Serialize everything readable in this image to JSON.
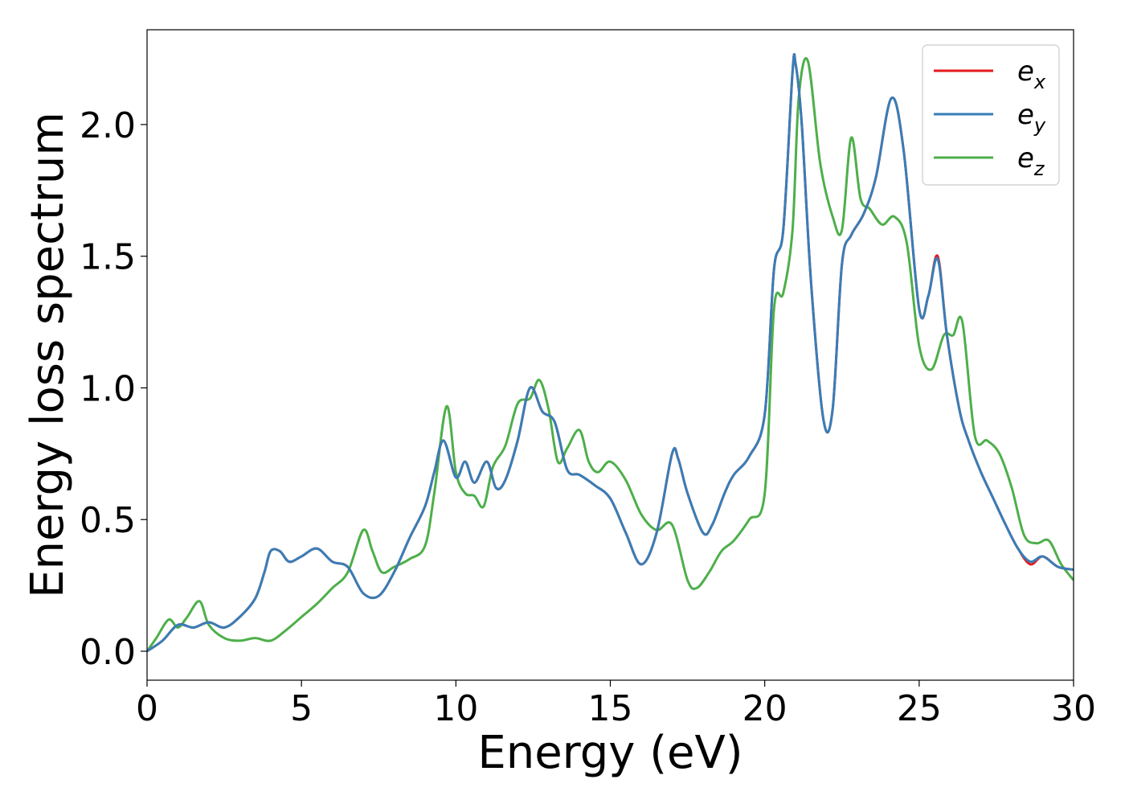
{
  "chart_data": {
    "type": "line",
    "title": "",
    "xlabel": "Energy (eV)",
    "ylabel": "Energy loss spectrum",
    "xlim": [
      0,
      30
    ],
    "ylim": [
      -0.11,
      2.36
    ],
    "xticks": [
      0,
      5,
      10,
      15,
      20,
      25,
      30
    ],
    "xtick_labels": [
      "0",
      "5",
      "10",
      "15",
      "20",
      "25",
      "30"
    ],
    "yticks": [
      0.0,
      0.5,
      1.0,
      1.5,
      2.0
    ],
    "ytick_labels": [
      "0.0",
      "0.5",
      "1.0",
      "1.5",
      "2.0"
    ],
    "grid": false,
    "legend": {
      "position": "top-right",
      "entries": [
        {
          "base": "e",
          "sub": "x",
          "color": "#e41a1c"
        },
        {
          "base": "e",
          "sub": "y",
          "color": "#377eb8"
        },
        {
          "base": "e",
          "sub": "z",
          "color": "#4daf4a"
        }
      ]
    },
    "series": [
      {
        "name": "ex",
        "color": "#e41a1c",
        "x": [
          0,
          0.5,
          1,
          1.5,
          2,
          2.5,
          3,
          3.5,
          3.8,
          4,
          4.3,
          4.6,
          5,
          5.5,
          6,
          6.5,
          7,
          7.5,
          8,
          8.5,
          9,
          9.3,
          9.6,
          10,
          10.3,
          10.6,
          11,
          11.3,
          11.6,
          12,
          12.4,
          12.8,
          13.2,
          13.6,
          14,
          14.5,
          15,
          15.5,
          16,
          16.5,
          17,
          17.2,
          17.5,
          18,
          18.3,
          18.7,
          19,
          19.5,
          20,
          20.3,
          20.6,
          20.9,
          21.0,
          21.2,
          21.5,
          21.9,
          22.2,
          22.5,
          22.8,
          23.2,
          23.6,
          24.1,
          24.5,
          25.0,
          25.3,
          25.6,
          25.9,
          26.3,
          26.6,
          27,
          27.4,
          27.8,
          28.2,
          28.6,
          29.0,
          29.5,
          30
        ],
        "y": [
          0,
          0.04,
          0.1,
          0.09,
          0.11,
          0.09,
          0.13,
          0.2,
          0.3,
          0.38,
          0.38,
          0.34,
          0.36,
          0.39,
          0.34,
          0.32,
          0.22,
          0.21,
          0.3,
          0.43,
          0.55,
          0.68,
          0.8,
          0.66,
          0.72,
          0.64,
          0.72,
          0.62,
          0.65,
          0.8,
          1.0,
          0.91,
          0.87,
          0.69,
          0.67,
          0.63,
          0.58,
          0.45,
          0.33,
          0.45,
          0.75,
          0.73,
          0.6,
          0.45,
          0.48,
          0.6,
          0.67,
          0.74,
          0.9,
          1.45,
          1.6,
          2.2,
          2.23,
          2.0,
          1.4,
          0.88,
          0.92,
          1.47,
          1.58,
          1.66,
          1.8,
          2.1,
          1.9,
          1.3,
          1.35,
          1.5,
          1.2,
          0.92,
          0.8,
          0.68,
          0.58,
          0.48,
          0.39,
          0.33,
          0.36,
          0.32,
          0.31
        ]
      },
      {
        "name": "ey",
        "color": "#377eb8",
        "x": [
          0,
          0.5,
          1,
          1.5,
          2,
          2.5,
          3,
          3.5,
          3.8,
          4,
          4.3,
          4.6,
          5,
          5.5,
          6,
          6.5,
          7,
          7.5,
          8,
          8.5,
          9,
          9.3,
          9.6,
          10,
          10.3,
          10.6,
          11,
          11.3,
          11.6,
          12,
          12.4,
          12.8,
          13.2,
          13.6,
          14,
          14.5,
          15,
          15.5,
          16,
          16.5,
          17,
          17.2,
          17.5,
          18,
          18.3,
          18.7,
          19,
          19.5,
          20,
          20.3,
          20.6,
          20.9,
          21.0,
          21.2,
          21.5,
          21.9,
          22.2,
          22.5,
          22.8,
          23.2,
          23.6,
          24.1,
          24.5,
          25.0,
          25.3,
          25.6,
          25.9,
          26.3,
          26.6,
          27,
          27.4,
          27.8,
          28.2,
          28.6,
          29.0,
          29.5,
          30
        ],
        "y": [
          0,
          0.04,
          0.1,
          0.09,
          0.11,
          0.09,
          0.13,
          0.2,
          0.3,
          0.38,
          0.38,
          0.34,
          0.36,
          0.39,
          0.34,
          0.32,
          0.22,
          0.21,
          0.3,
          0.43,
          0.55,
          0.68,
          0.8,
          0.66,
          0.72,
          0.64,
          0.72,
          0.62,
          0.65,
          0.8,
          1.0,
          0.91,
          0.87,
          0.69,
          0.67,
          0.63,
          0.58,
          0.45,
          0.33,
          0.45,
          0.75,
          0.73,
          0.6,
          0.45,
          0.48,
          0.6,
          0.67,
          0.74,
          0.9,
          1.45,
          1.6,
          2.2,
          2.23,
          2.0,
          1.4,
          0.88,
          0.92,
          1.47,
          1.58,
          1.66,
          1.8,
          2.1,
          1.9,
          1.3,
          1.35,
          1.49,
          1.2,
          0.92,
          0.8,
          0.68,
          0.58,
          0.48,
          0.39,
          0.34,
          0.36,
          0.32,
          0.31
        ]
      },
      {
        "name": "ez",
        "color": "#4daf4a",
        "x": [
          0,
          0.3,
          0.7,
          1.0,
          1.3,
          1.7,
          2.0,
          2.5,
          3.0,
          3.5,
          4.0,
          4.5,
          5.0,
          5.5,
          6.0,
          6.5,
          7.0,
          7.3,
          7.6,
          8.0,
          8.5,
          9.0,
          9.3,
          9.7,
          10.0,
          10.3,
          10.6,
          10.9,
          11.2,
          11.6,
          12.0,
          12.4,
          12.7,
          13.0,
          13.3,
          13.6,
          14.0,
          14.3,
          14.6,
          15.0,
          15.5,
          16.0,
          16.5,
          17.0,
          17.5,
          17.8,
          18.2,
          18.6,
          19.0,
          19.5,
          20.0,
          20.3,
          20.6,
          20.9,
          21.1,
          21.4,
          21.8,
          22.2,
          22.5,
          22.8,
          23.1,
          23.4,
          23.8,
          24.2,
          24.6,
          25.0,
          25.4,
          25.8,
          26.1,
          26.4,
          26.8,
          27.2,
          27.6,
          28.0,
          28.4,
          28.8,
          29.2,
          29.6,
          30.0
        ],
        "y": [
          0,
          0.05,
          0.12,
          0.09,
          0.13,
          0.19,
          0.1,
          0.05,
          0.04,
          0.05,
          0.04,
          0.08,
          0.13,
          0.18,
          0.24,
          0.3,
          0.46,
          0.38,
          0.3,
          0.32,
          0.35,
          0.4,
          0.6,
          0.93,
          0.68,
          0.6,
          0.59,
          0.55,
          0.7,
          0.78,
          0.94,
          0.96,
          1.03,
          0.92,
          0.72,
          0.77,
          0.84,
          0.72,
          0.68,
          0.72,
          0.65,
          0.52,
          0.46,
          0.48,
          0.27,
          0.24,
          0.3,
          0.38,
          0.42,
          0.5,
          0.6,
          1.3,
          1.36,
          1.6,
          2.1,
          2.24,
          1.85,
          1.65,
          1.6,
          1.95,
          1.72,
          1.68,
          1.62,
          1.65,
          1.55,
          1.16,
          1.07,
          1.2,
          1.2,
          1.25,
          0.82,
          0.8,
          0.75,
          0.62,
          0.44,
          0.41,
          0.42,
          0.33,
          0.27
        ]
      }
    ]
  }
}
